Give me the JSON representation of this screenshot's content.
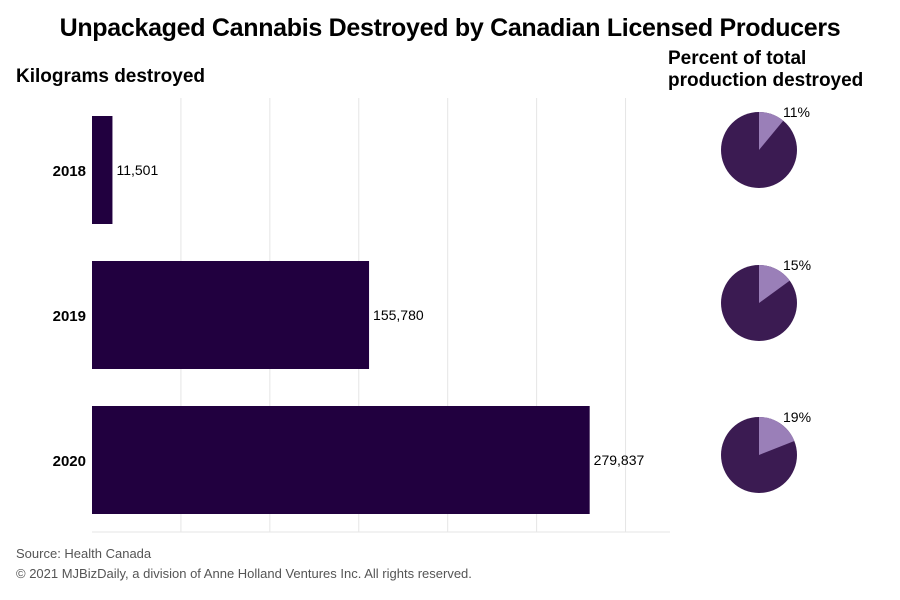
{
  "title": "Unpackaged Cannabis Destroyed by Canadian Licensed Producers",
  "bar_heading": "Kilograms destroyed",
  "pie_heading_line1": "Percent of total",
  "pie_heading_line2": "production destroyed",
  "source": "Source: Health Canada",
  "copyright": "© 2021 MJBizDaily, a division of Anne Holland Ventures Inc. All rights reserved.",
  "colors": {
    "bar": "#21003f",
    "pie_main": "#3b1b52",
    "pie_slice": "#9a7fb8",
    "grid": "#e6e6e6"
  },
  "chart_data": [
    {
      "type": "bar",
      "orientation": "horizontal",
      "categories": [
        "2018",
        "2019",
        "2020"
      ],
      "values": [
        11501,
        155780,
        279837
      ],
      "value_labels": [
        "11,501",
        "155,780",
        "279,837"
      ],
      "xlim": [
        0,
        325000
      ],
      "grid": true
    },
    {
      "type": "pie",
      "categories": [
        "2018",
        "2019",
        "2020"
      ],
      "values": [
        11,
        15,
        19
      ],
      "value_labels": [
        "11%",
        "15%",
        "19%"
      ]
    }
  ]
}
